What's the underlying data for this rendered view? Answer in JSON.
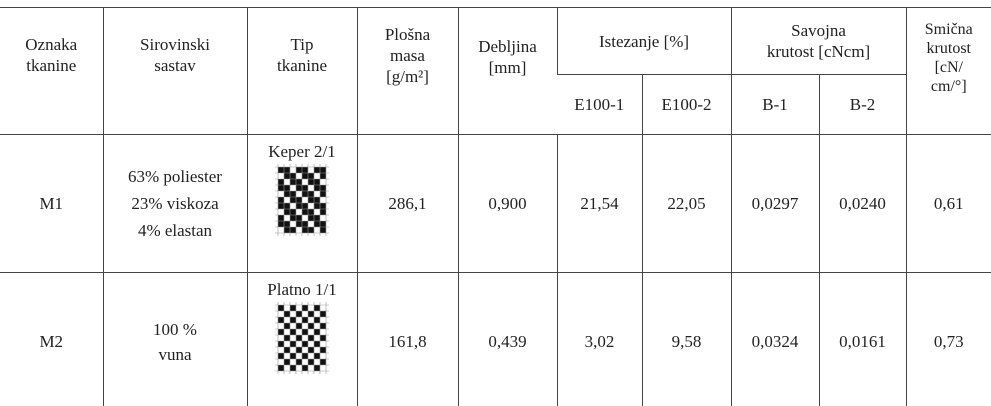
{
  "table": {
    "header": {
      "oznaka": [
        "Oznaka",
        "tkanine"
      ],
      "sastav": [
        "Sirovinski",
        "sastav"
      ],
      "tip": [
        "Tip",
        "tkanine"
      ],
      "masa": [
        "Plošna",
        "masa",
        "[g/m²]"
      ],
      "debljina": [
        "Debljina",
        "[mm]"
      ],
      "istezanje": "Istezanje [%]",
      "savojna": [
        "Savojna",
        "krutost [cNcm]"
      ],
      "smicna": [
        "Smična",
        "krutost",
        "[cN/",
        "cm/°]"
      ],
      "sub": [
        "E100-1",
        "E100-2",
        "B-1",
        "B-2"
      ]
    },
    "rows": [
      {
        "oznaka": "M1",
        "sastav": [
          "63% poliester",
          "23% viskoza",
          "4% elastan"
        ],
        "tip": "Keper 2/1",
        "cells": [
          "286,1",
          "0,900",
          "21,54",
          "22,05",
          "0,0297",
          "0,0240",
          "0,61"
        ]
      },
      {
        "oznaka": "M2",
        "sastav": [
          "100 %",
          "vuna"
        ],
        "tip": "Platno 1/1",
        "cells": [
          "161,8",
          "0,439",
          "3,02",
          "9,58",
          "0,0324",
          "0,0161",
          "0,73"
        ]
      }
    ]
  }
}
